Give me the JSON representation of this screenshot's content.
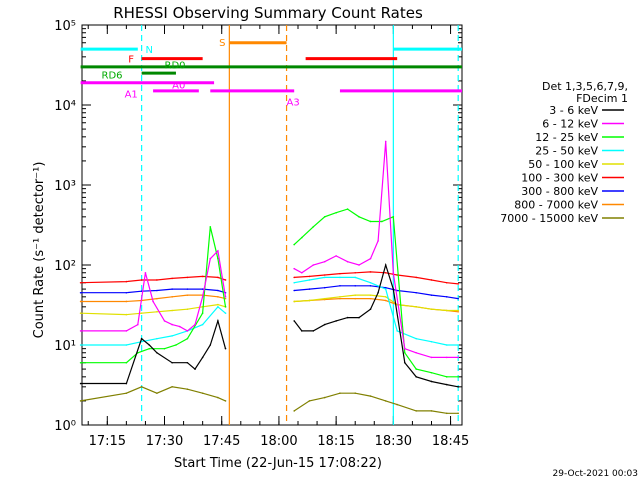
{
  "chart_data": {
    "type": "line",
    "title": "RHESSI Observing Summary Count Rates",
    "xlabel": "Start Time (22-Jun-15 17:08:22)",
    "ylabel": "Count Rate (s⁻¹ detector⁻¹)",
    "yscale": "log",
    "ylim": [
      1,
      100000
    ],
    "xlim_minutes": [
      "17:08",
      "18:48"
    ],
    "x_ticks": [
      "17:15",
      "17:30",
      "17:45",
      "18:00",
      "18:15",
      "18:30",
      "18:45"
    ],
    "y_ticks": [
      "10⁰",
      "10¹",
      "10²",
      "10³",
      "10⁴",
      "10⁵"
    ],
    "legend_title": [
      "Det 1,3,5,6,7,9,",
      "FDecim 1"
    ],
    "legend_position": "right",
    "timestamp": "29-Oct-2021 00:03",
    "series": [
      {
        "name": "3 - 6 keV",
        "color": "#000000",
        "segments": [
          {
            "x": [
              "17:08",
              "17:20",
              "17:24",
              "17:26",
              "17:28",
              "17:32",
              "17:36",
              "17:38",
              "17:40",
              "17:42",
              "17:44",
              "17:46"
            ],
            "y": [
              3.3,
              3.3,
              12,
              10,
              8,
              6,
              6,
              5,
              7,
              10,
              20,
              9
            ]
          },
          {
            "x": [
              "18:04",
              "18:06",
              "18:09",
              "18:12",
              "18:15",
              "18:18",
              "18:21",
              "18:24",
              "18:26",
              "18:28",
              "18:30",
              "18:33",
              "18:36",
              "18:40",
              "18:44",
              "18:47"
            ],
            "y": [
              20,
              15,
              15,
              18,
              20,
              22,
              22,
              28,
              45,
              100,
              50,
              6,
              4,
              3.5,
              3.2,
              3
            ]
          }
        ]
      },
      {
        "name": "6 - 12 keV",
        "color": "#ff00ff",
        "segments": [
          {
            "x": [
              "17:08",
              "17:20",
              "17:23",
              "17:25",
              "17:27",
              "17:30",
              "17:32",
              "17:34",
              "17:36",
              "17:38",
              "17:40",
              "17:42",
              "17:44",
              "17:46"
            ],
            "y": [
              15,
              15,
              18,
              80,
              35,
              20,
              18,
              17,
              15,
              18,
              40,
              120,
              150,
              40
            ]
          },
          {
            "x": [
              "18:04",
              "18:06",
              "18:09",
              "18:12",
              "18:15",
              "18:18",
              "18:21",
              "18:24",
              "18:26",
              "18:28",
              "18:30",
              "18:33",
              "18:36",
              "18:40",
              "18:44",
              "18:47"
            ],
            "y": [
              90,
              80,
              100,
              110,
              130,
              110,
              100,
              120,
              200,
              3500,
              80,
              9,
              8,
              7,
              7,
              7
            ]
          }
        ]
      },
      {
        "name": "12 - 25 keV",
        "color": "#00ff00",
        "segments": [
          {
            "x": [
              "17:08",
              "17:20",
              "17:23",
              "17:26",
              "17:30",
              "17:33",
              "17:36",
              "17:40",
              "17:42",
              "17:44",
              "17:46"
            ],
            "y": [
              6,
              6,
              8,
              9,
              9,
              10,
              12,
              25,
              300,
              120,
              30
            ]
          },
          {
            "x": [
              "18:04",
              "18:06",
              "18:09",
              "18:12",
              "18:15",
              "18:18",
              "18:21",
              "18:24",
              "18:27",
              "18:30",
              "18:33",
              "18:36",
              "18:40",
              "18:44",
              "18:47"
            ],
            "y": [
              180,
              220,
              300,
              400,
              450,
              500,
              400,
              350,
              350,
              400,
              8,
              5,
              4.5,
              4,
              4
            ]
          }
        ]
      },
      {
        "name": "25 - 50 keV",
        "color": "#00ffff",
        "segments": [
          {
            "x": [
              "17:08",
              "17:20",
              "17:24",
              "17:28",
              "17:32",
              "17:36",
              "17:40",
              "17:44",
              "17:46"
            ],
            "y": [
              10,
              10,
              11,
              12,
              13,
              15,
              18,
              30,
              25
            ]
          },
          {
            "x": [
              "18:04",
              "18:08",
              "18:12",
              "18:16",
              "18:20",
              "18:24",
              "18:28",
              "18:31",
              "18:36",
              "18:40",
              "18:44",
              "18:47"
            ],
            "y": [
              60,
              65,
              70,
              70,
              70,
              60,
              50,
              15,
              12,
              11,
              10,
              10
            ]
          }
        ]
      },
      {
        "name": "50 - 100 keV",
        "color": "#e0e000",
        "segments": [
          {
            "x": [
              "17:08",
              "17:20",
              "17:24",
              "17:28",
              "17:32",
              "17:36",
              "17:40",
              "17:44",
              "17:46"
            ],
            "y": [
              25,
              24,
              25,
              26,
              27,
              28,
              30,
              32,
              30
            ]
          },
          {
            "x": [
              "18:04",
              "18:08",
              "18:12",
              "18:16",
              "18:20",
              "18:24",
              "18:28",
              "18:31",
              "18:36",
              "18:40",
              "18:44",
              "18:47"
            ],
            "y": [
              35,
              36,
              38,
              40,
              42,
              42,
              40,
              32,
              30,
              28,
              27,
              27
            ]
          }
        ]
      },
      {
        "name": "100 - 300 keV",
        "color": "#ff0000",
        "segments": [
          {
            "x": [
              "17:08",
              "17:20",
              "17:24",
              "17:28",
              "17:32",
              "17:36",
              "17:40",
              "17:44",
              "17:46"
            ],
            "y": [
              60,
              62,
              65,
              65,
              68,
              70,
              72,
              70,
              65
            ]
          },
          {
            "x": [
              "18:04",
              "18:08",
              "18:12",
              "18:16",
              "18:20",
              "18:24",
              "18:28",
              "18:31",
              "18:36",
              "18:40",
              "18:44",
              "18:47"
            ],
            "y": [
              70,
              72,
              75,
              78,
              80,
              82,
              80,
              75,
              70,
              65,
              60,
              58
            ]
          }
        ]
      },
      {
        "name": "300 - 800 keV",
        "color": "#0000ff",
        "segments": [
          {
            "x": [
              "17:08",
              "17:20",
              "17:24",
              "17:28",
              "17:32",
              "17:36",
              "17:40",
              "17:44",
              "17:46"
            ],
            "y": [
              45,
              45,
              47,
              48,
              50,
              50,
              50,
              48,
              45
            ]
          },
          {
            "x": [
              "18:04",
              "18:08",
              "18:12",
              "18:16",
              "18:20",
              "18:24",
              "18:28",
              "18:31",
              "18:36",
              "18:40",
              "18:44",
              "18:47"
            ],
            "y": [
              48,
              50,
              52,
              55,
              55,
              55,
              52,
              48,
              45,
              42,
              40,
              38
            ]
          }
        ]
      },
      {
        "name": "800 - 7000 keV",
        "color": "#ff8800",
        "segments": [
          {
            "x": [
              "17:08",
              "17:20",
              "17:24",
              "17:28",
              "17:32",
              "17:36",
              "17:40",
              "17:44",
              "17:46"
            ],
            "y": [
              35,
              35,
              36,
              38,
              40,
              42,
              42,
              40,
              38
            ]
          },
          {
            "x": [
              "18:04",
              "18:08",
              "18:12",
              "18:16",
              "18:20",
              "18:24",
              "18:28",
              "18:31",
              "18:36",
              "18:40",
              "18:44",
              "18:47"
            ],
            "y": [
              35,
              36,
              37,
              38,
              38,
              38,
              36,
              32,
              30,
              28,
              27,
              26
            ]
          }
        ]
      },
      {
        "name": "7000 - 15000 keV",
        "color": "#808000",
        "segments": [
          {
            "x": [
              "17:08",
              "17:20",
              "17:24",
              "17:28",
              "17:32",
              "17:36",
              "17:40",
              "17:44",
              "17:46"
            ],
            "y": [
              2,
              2.5,
              3,
              2.5,
              3,
              2.8,
              2.5,
              2.2,
              2
            ]
          },
          {
            "x": [
              "18:04",
              "18:08",
              "18:12",
              "18:16",
              "18:20",
              "18:24",
              "18:28",
              "18:31",
              "18:36",
              "18:40",
              "18:44",
              "18:47"
            ],
            "y": [
              1.5,
              2,
              2.2,
              2.5,
              2.5,
              2.3,
              2,
              1.8,
              1.5,
              1.5,
              1.4,
              1.4
            ]
          }
        ]
      }
    ],
    "annotations": [
      {
        "label": "N",
        "color": "#00ffff"
      },
      {
        "label": "F",
        "color": "#ff0000"
      },
      {
        "label": "RD0",
        "color": "#00aa00"
      },
      {
        "label": "RD6",
        "color": "#00aa00"
      },
      {
        "label": "A0",
        "color": "#ff00ff"
      },
      {
        "label": "A1",
        "color": "#ff00ff"
      },
      {
        "label": "A3",
        "color": "#ff00ff"
      },
      {
        "label": "S",
        "color": "#ff8800"
      }
    ],
    "state_bars": [
      {
        "label": "N",
        "color": "#00ffff",
        "y": 50000,
        "spans": [
          [
            "17:08",
            "17:23"
          ],
          [
            "18:30",
            "18:48"
          ]
        ]
      },
      {
        "label": "F",
        "color": "#ff0000",
        "y": 38000,
        "spans": [
          [
            "17:24",
            "17:40"
          ],
          [
            "18:07",
            "18:31"
          ]
        ]
      },
      {
        "label": "RD0",
        "color": "#008800",
        "y": 30000,
        "spans": [
          [
            "17:08",
            "18:48"
          ]
        ]
      },
      {
        "label": "RD6",
        "color": "#008800",
        "y": 25000,
        "spans": [
          [
            "17:24",
            "17:33"
          ]
        ]
      },
      {
        "label": "A0",
        "color": "#ff00ff",
        "y": 19000,
        "spans": [
          [
            "17:08",
            "17:43"
          ]
        ]
      },
      {
        "label": "A1",
        "color": "#ff00ff",
        "y": 15000,
        "spans": [
          [
            "17:27",
            "17:39"
          ],
          [
            "17:42",
            "18:04"
          ],
          [
            "18:16",
            "18:48"
          ]
        ]
      },
      {
        "label": "S",
        "color": "#ff8800",
        "y": 60000,
        "spans": [
          [
            "17:47",
            "18:02"
          ]
        ]
      }
    ],
    "vlines": [
      {
        "t": "17:24",
        "color": "#00ffff",
        "style": "dashed"
      },
      {
        "t": "17:47",
        "color": "#ff8800",
        "style": "solid"
      },
      {
        "t": "18:02",
        "color": "#ff8800",
        "style": "dashed"
      },
      {
        "t": "18:30",
        "color": "#00ffff",
        "style": "solid"
      },
      {
        "t": "18:47",
        "color": "#00ffff",
        "style": "dashed"
      }
    ]
  }
}
